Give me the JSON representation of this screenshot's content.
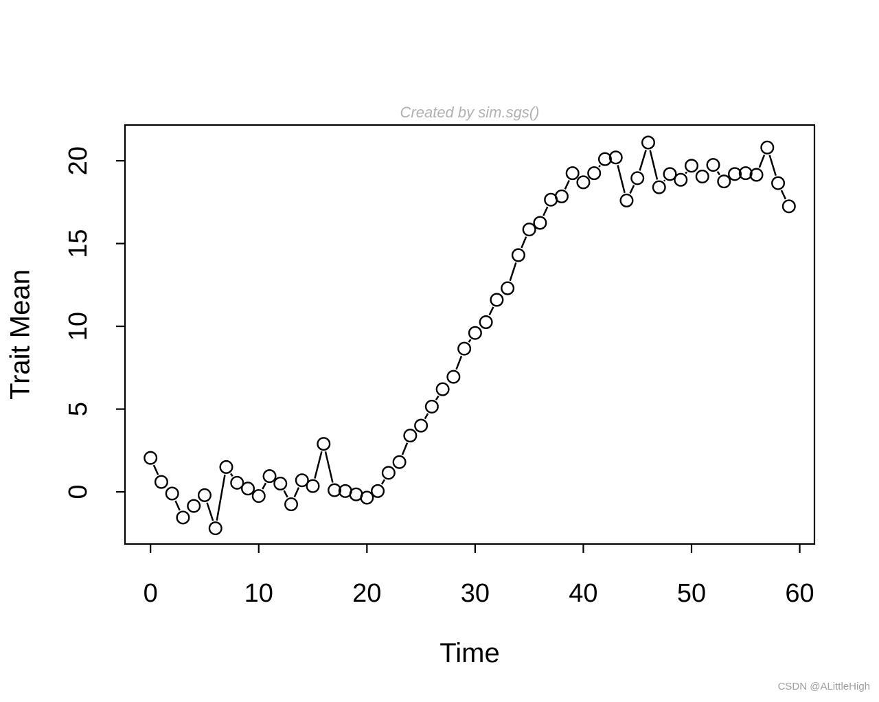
{
  "page": {
    "background": "#ffffff"
  },
  "chart_data": {
    "type": "line",
    "title": "Created by sim.sgs()",
    "title_color": "#b1b1b1",
    "xlabel": "Time",
    "ylabel": "Trait Mean",
    "marker": "open-circle",
    "line_color": "#000000",
    "marker_color": "#000000",
    "grid": false,
    "legend": null,
    "xticks": [
      0,
      10,
      20,
      30,
      40,
      50,
      60
    ],
    "yticks": [
      0,
      5,
      10,
      15,
      20
    ],
    "xlim": [
      -2.36,
      61.36
    ],
    "ylim": [
      -3.15,
      22.16
    ],
    "x": [
      0,
      1,
      2,
      3,
      4,
      5,
      6,
      7,
      8,
      9,
      10,
      11,
      12,
      13,
      14,
      15,
      16,
      17,
      18,
      19,
      20,
      21,
      22,
      23,
      24,
      25,
      26,
      27,
      28,
      29,
      30,
      31,
      32,
      33,
      34,
      35,
      36,
      37,
      38,
      39,
      40,
      41,
      42,
      43,
      44,
      45,
      46,
      47,
      48,
      49,
      50,
      51,
      52,
      53,
      54,
      55,
      56,
      57,
      58,
      59
    ],
    "values": [
      2.05,
      0.6,
      -0.1,
      -1.55,
      -0.85,
      -0.2,
      -2.2,
      1.5,
      0.55,
      0.2,
      -0.25,
      0.95,
      0.5,
      -0.75,
      0.7,
      0.35,
      2.9,
      0.1,
      0.05,
      -0.15,
      -0.35,
      0.05,
      1.15,
      1.8,
      3.4,
      4.0,
      5.15,
      6.2,
      6.95,
      8.65,
      9.6,
      10.25,
      11.6,
      12.3,
      14.3,
      15.85,
      16.25,
      17.65,
      17.85,
      19.25,
      18.7,
      19.25,
      20.1,
      20.2,
      17.6,
      18.95,
      21.1,
      18.4,
      19.2,
      18.85,
      19.7,
      19.05,
      19.75,
      18.75,
      19.2,
      19.25,
      19.15,
      20.8,
      18.65,
      17.25
    ]
  },
  "watermark": {
    "text": "CSDN @ALittleHigh",
    "color": "#9c9ea0"
  }
}
